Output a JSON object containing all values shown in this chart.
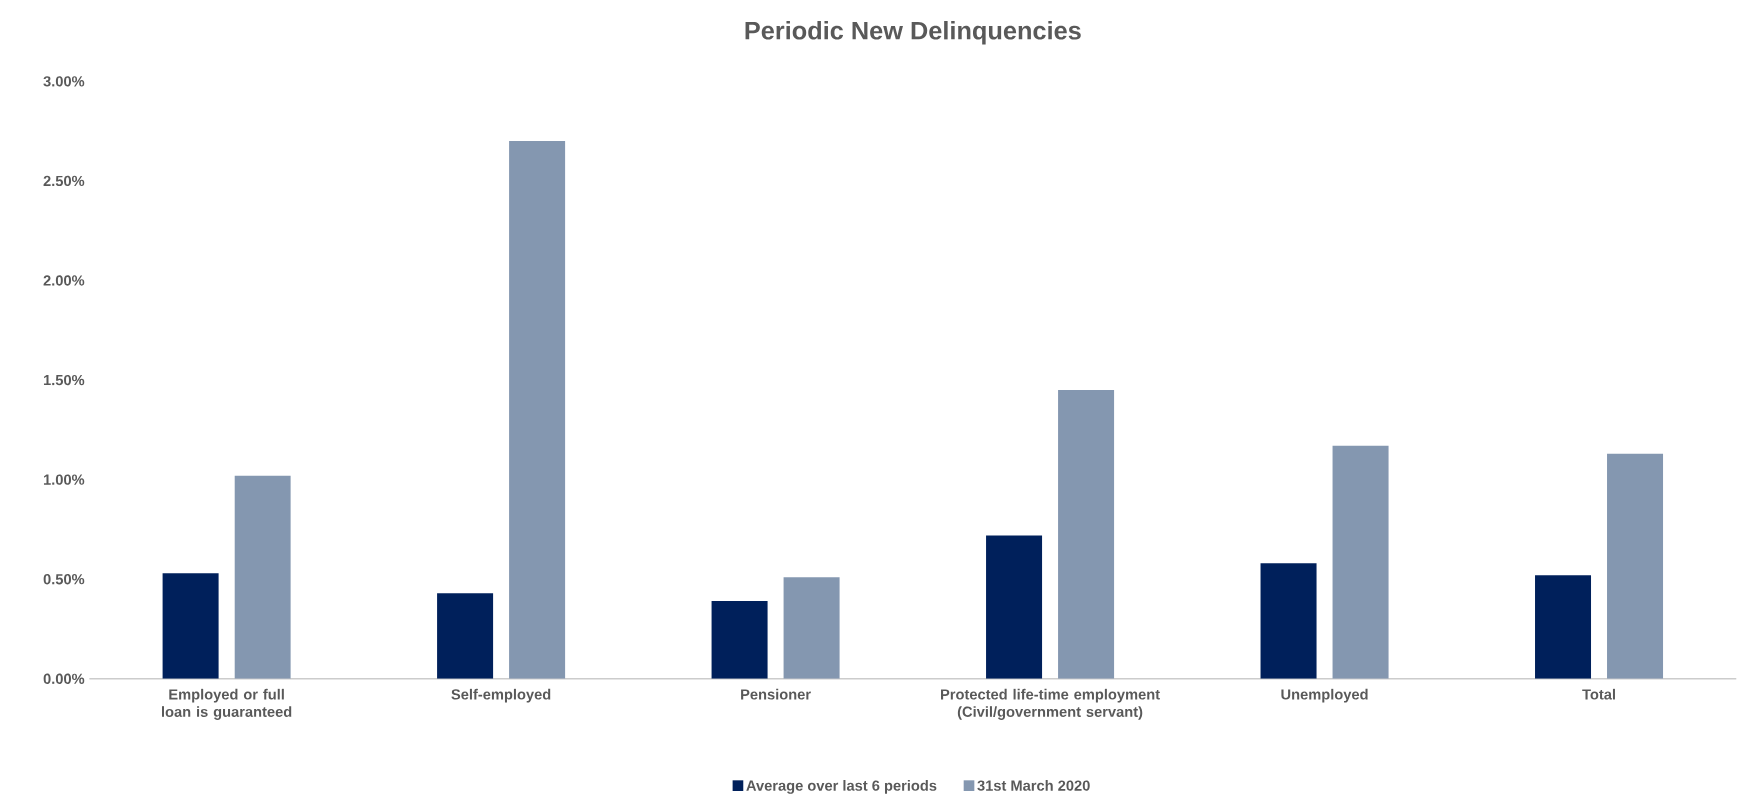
{
  "chart_data": {
    "type": "bar",
    "title": "Periodic New Delinquencies",
    "categories": [
      "Employed or full loan is guaranteed",
      "Self-employed",
      "Pensioner",
      "Protected life-time employment (Civil/government servant)",
      "Unemployed",
      "Total"
    ],
    "series": [
      {
        "name": "Average over last 6 periods",
        "color": "#00205b",
        "values": [
          0.53,
          0.43,
          0.39,
          0.72,
          0.58,
          0.52
        ]
      },
      {
        "name": "31st March 2020",
        "color": "#8497b0",
        "values": [
          1.02,
          2.7,
          0.51,
          1.45,
          1.17,
          1.13
        ]
      }
    ],
    "ylim": [
      0,
      3
    ],
    "yticks": [
      {
        "value": 0,
        "label": "0.00%"
      },
      {
        "value": 0.5,
        "label": "0.50%"
      },
      {
        "value": 1,
        "label": "1.00%"
      },
      {
        "value": 1.5,
        "label": "1.50%"
      },
      {
        "value": 2,
        "label": "2.00%"
      },
      {
        "value": 2.5,
        "label": "2.50%"
      },
      {
        "value": 3,
        "label": "3.00%"
      }
    ],
    "grid": false,
    "legend": "bottom"
  }
}
